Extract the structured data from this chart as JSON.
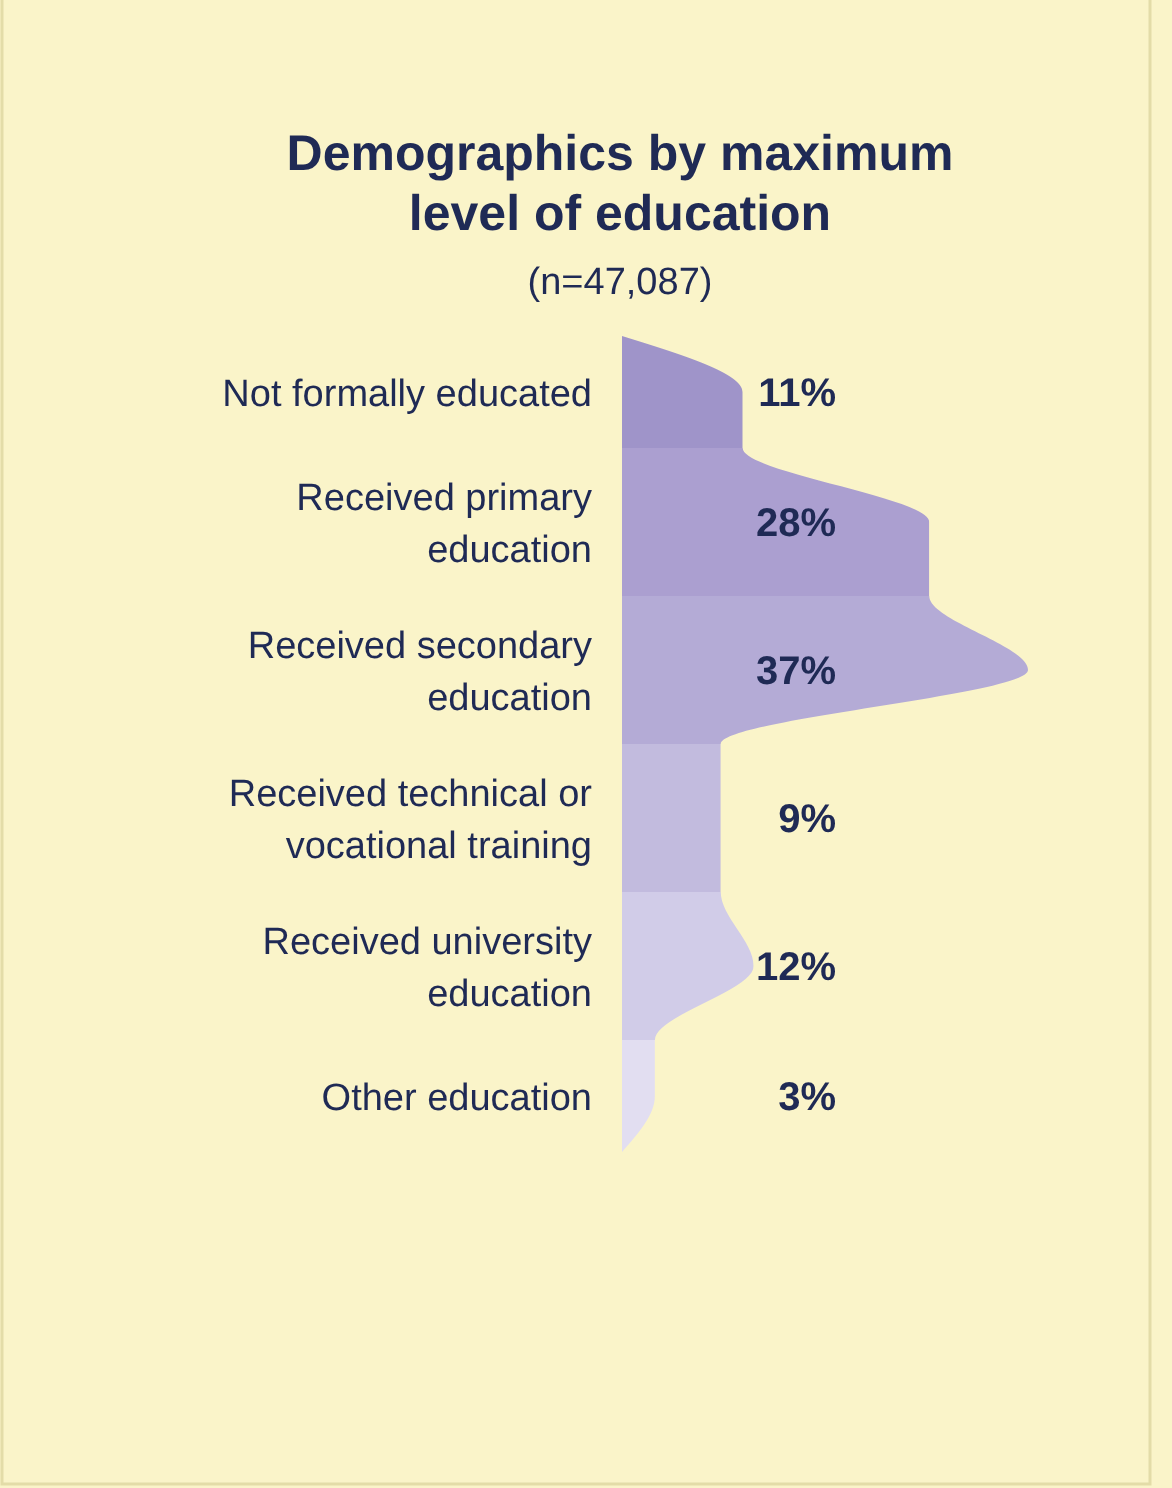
{
  "chart_data": {
    "type": "bar",
    "orientation": "horizontal",
    "title": "Demographics by maximum level of education",
    "subtitle": "(n=47,087)",
    "categories": [
      "Not formally educated",
      "Received primary education",
      "Received secondary education",
      "Received technical or vocational training",
      "Received university education",
      "Other education"
    ],
    "values": [
      11,
      28,
      37,
      9,
      12,
      3
    ],
    "colors": [
      "#9f94c9",
      "#ab9fd0",
      "#b4abd6",
      "#c2bbde",
      "#d1cce8",
      "#e2def1"
    ],
    "value_labels": [
      "11%",
      "28%",
      "37%",
      "9%",
      "12%",
      "3%"
    ],
    "tick_labels": false
  }
}
